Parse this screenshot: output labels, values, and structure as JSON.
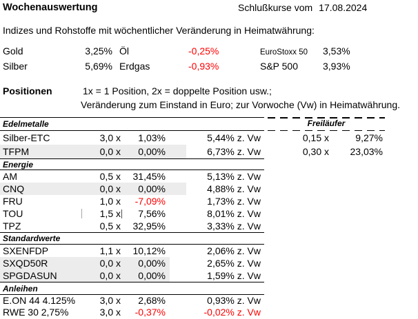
{
  "header": {
    "title": "Wochenauswertung",
    "closing_label": "Schlußkurse vom",
    "closing_date": "17.08.2024"
  },
  "intro": "Indizes und Rohstoffe mit wöchentlicher Veränderung in Heimatwährung:",
  "market": {
    "rows": [
      {
        "c1": "Gold",
        "v1": "3,25%",
        "c2": "Öl",
        "v2": "-0,25%",
        "c3": "EuroStoxx 50",
        "v3": "3,53%"
      },
      {
        "c1": "Silber",
        "v1": "5,69%",
        "c2": "Erdgas",
        "v2": "-0,93%",
        "c3": "S&P 500",
        "v3": "3,93%"
      }
    ]
  },
  "positions_note": {
    "label": "Positionen",
    "line1": "1x = 1 Position, 2x = doppelte Position usw.;",
    "line2": "Veränderung zum Einstand in Euro; zur Vorwoche (Vw) in Heimatwährung."
  },
  "freilaeufer_label": "Freiläufer",
  "sections": [
    {
      "name": "Edelmetalle",
      "rows": [
        {
          "name": "Silber-ETC",
          "pos": "3,0 x",
          "einstand": "1,03%",
          "vw": "5,44% z. Vw",
          "free_pos": "0,15 x",
          "free_val": "9,27%"
        },
        {
          "name": "TFPM",
          "pos": "0,0 x",
          "einstand": "0,00%",
          "vw": "6,73% z. Vw",
          "free_pos": "0,30 x",
          "free_val": "23,03%",
          "highlight": true
        }
      ]
    },
    {
      "name": "Energie",
      "rows": [
        {
          "name": "AM",
          "pos": "0,5 x",
          "einstand": "31,45%",
          "vw": "5,13% z. Vw"
        },
        {
          "name": "CNQ",
          "pos": "0,0 x",
          "einstand": "0,00%",
          "vw": "4,88% z. Vw",
          "highlight": true
        },
        {
          "name": "FRU",
          "pos": "1,0 x",
          "einstand": "-7,09%",
          "vw": "1,73% z. Vw"
        },
        {
          "name": "TOU",
          "pos": "1,5 x",
          "einstand": "7,56%",
          "vw": "8,01% z. Vw",
          "cursor": true
        },
        {
          "name": "TPZ",
          "pos": "0,5 x",
          "einstand": "32,95%",
          "vw": "3,33% z. Vw"
        }
      ]
    },
    {
      "name": "Standardwerte",
      "rows": [
        {
          "name": "SXENFDP",
          "pos": "1,1 x",
          "einstand": "10,12%",
          "vw": "2,06% z. Vw"
        },
        {
          "name": "SXQD50R",
          "pos": "0,0 x",
          "einstand": "0,00%",
          "vw": "2,65% z. Vw",
          "highlight": true
        },
        {
          "name": "SPGDASUN",
          "pos": "0,0 x",
          "einstand": "0,00%",
          "vw": "1,59% z. Vw",
          "highlight": true
        }
      ]
    },
    {
      "name": "Anleihen",
      "rows": [
        {
          "name": "E.ON 44 4.125%",
          "pos": "3,0 x",
          "einstand": "2,68%",
          "vw": "0,93% z. Vw"
        },
        {
          "name": "RWE 30 2,75%",
          "pos": "3,0 x",
          "einstand": "-0,37%",
          "vw": "-0,02% z. Vw"
        }
      ]
    }
  ],
  "colors": {
    "negative": "#ff0000",
    "row_highlight": "#ececec"
  }
}
